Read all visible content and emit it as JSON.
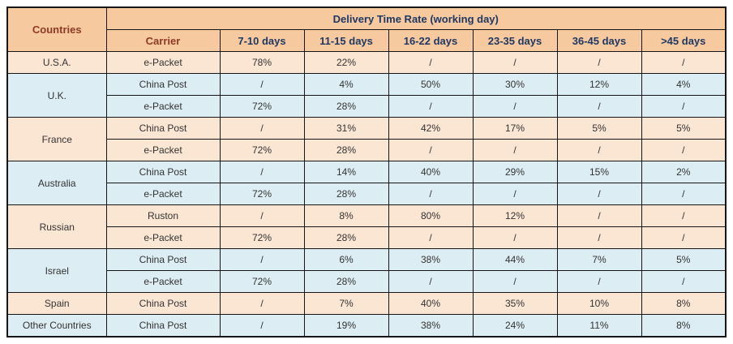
{
  "chart_data": {
    "type": "table",
    "title": "Delivery Time Rate   (working day)",
    "corner_header": "Countries",
    "subheaders": [
      "Carrier",
      "7-10 days",
      "11-15 days",
      "16-22 days",
      "23-35 days",
      "36-45 days",
      ">45 days"
    ],
    "groups": [
      {
        "country": "U.S.A.",
        "tone": "peach",
        "rows": [
          {
            "carrier": "e-Packet",
            "values": [
              "78%",
              "22%",
              "/",
              "/",
              "/",
              "/"
            ]
          }
        ]
      },
      {
        "country": "U.K.",
        "tone": "blue",
        "rows": [
          {
            "carrier": "China Post",
            "values": [
              "/",
              "4%",
              "50%",
              "30%",
              "12%",
              "4%"
            ]
          },
          {
            "carrier": "e-Packet",
            "values": [
              "72%",
              "28%",
              "/",
              "/",
              "/",
              "/"
            ]
          }
        ]
      },
      {
        "country": "France",
        "tone": "peach",
        "rows": [
          {
            "carrier": "China Post",
            "values": [
              "/",
              "31%",
              "42%",
              "17%",
              "5%",
              "5%"
            ]
          },
          {
            "carrier": "e-Packet",
            "values": [
              "72%",
              "28%",
              "/",
              "/",
              "/",
              "/"
            ]
          }
        ]
      },
      {
        "country": "Australia",
        "tone": "blue",
        "rows": [
          {
            "carrier": "China Post",
            "values": [
              "/",
              "14%",
              "40%",
              "29%",
              "15%",
              "2%"
            ]
          },
          {
            "carrier": "e-Packet",
            "values": [
              "72%",
              "28%",
              "/",
              "/",
              "/",
              "/"
            ]
          }
        ]
      },
      {
        "country": "Russian",
        "tone": "peach",
        "rows": [
          {
            "carrier": "Ruston",
            "values": [
              "/",
              "8%",
              "80%",
              "12%",
              "/",
              "/"
            ]
          },
          {
            "carrier": "e-Packet",
            "values": [
              "72%",
              "28%",
              "/",
              "/",
              "/",
              "/"
            ]
          }
        ]
      },
      {
        "country": "Israel",
        "tone": "blue",
        "rows": [
          {
            "carrier": "China Post",
            "values": [
              "/",
              "6%",
              "38%",
              "44%",
              "7%",
              "5%"
            ]
          },
          {
            "carrier": "e-Packet",
            "values": [
              "72%",
              "28%",
              "/",
              "/",
              "/",
              "/"
            ]
          }
        ]
      },
      {
        "country": "Spain",
        "tone": "peach",
        "rows": [
          {
            "carrier": "China Post",
            "values": [
              "/",
              "7%",
              "40%",
              "35%",
              "10%",
              "8%"
            ]
          }
        ]
      },
      {
        "country": "Other Countries",
        "tone": "blue",
        "rows": [
          {
            "carrier": "China Post",
            "values": [
              "/",
              "19%",
              "38%",
              "24%",
              "11%",
              "8%"
            ]
          }
        ]
      }
    ],
    "colors": {
      "header_bg": "#F7C99E",
      "row_peach": "#FBE5D3",
      "row_blue": "#DCEDF3",
      "title_text": "#1F3864",
      "countries_text": "#8E3A27",
      "data_text": "#333333",
      "border": "#161616"
    }
  }
}
